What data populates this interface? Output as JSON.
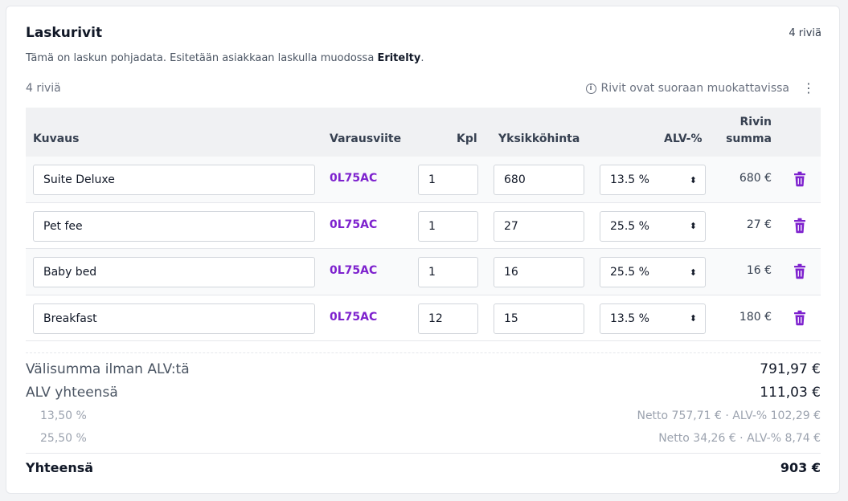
{
  "header": {
    "title": "Laskurivit",
    "count_label": "4 riviä",
    "subtitle_prefix": "Tämä on laskun pohjadata. Esitetään asiakkaan laskulla muodossa ",
    "subtitle_emphasis": "Eritelty",
    "subtitle_suffix": "."
  },
  "toolbar": {
    "row_count": "4 riviä",
    "info_text": "Rivit ovat suoraan muokattavissa",
    "info_icon": "info-circle-icon",
    "menu_icon": "kebab-menu-icon"
  },
  "table": {
    "columns": {
      "description": "Kuvaus",
      "reference": "Varausviite",
      "qty": "Kpl",
      "unit_price": "Yksikköhinta",
      "vat": "ALV-%",
      "row_sum_line1": "Rivin",
      "row_sum_line2": "summa"
    },
    "rows": [
      {
        "description": "Suite Deluxe",
        "reference": "0L75AC",
        "qty": "1",
        "unit_price": "680",
        "vat": "13.5 %",
        "sum": "680 €"
      },
      {
        "description": "Pet fee",
        "reference": "0L75AC",
        "qty": "1",
        "unit_price": "27",
        "vat": "25.5 %",
        "sum": "27 €"
      },
      {
        "description": "Baby bed",
        "reference": "0L75AC",
        "qty": "1",
        "unit_price": "16",
        "vat": "25.5 %",
        "sum": "16 €"
      },
      {
        "description": "Breakfast",
        "reference": "0L75AC",
        "qty": "12",
        "unit_price": "15",
        "vat": "13.5 %",
        "sum": "180 €"
      }
    ]
  },
  "totals": {
    "subtotal_label": "Välisumma ilman ALV:tä",
    "subtotal_value": "791,97 €",
    "vat_label": "ALV yhteensä",
    "vat_value": "111,03 €",
    "breakdown": [
      {
        "rate": "13,50 %",
        "detail": "Netto 757,71 € · ALV-% 102,29 €"
      },
      {
        "rate": "25,50 %",
        "detail": "Netto 34,26 € · ALV-% 8,74 €"
      }
    ],
    "total_label": "Yhteensä",
    "total_value": "903 €"
  },
  "colors": {
    "accent": "#7e22ce",
    "header_bg": "#f0f1f3"
  }
}
